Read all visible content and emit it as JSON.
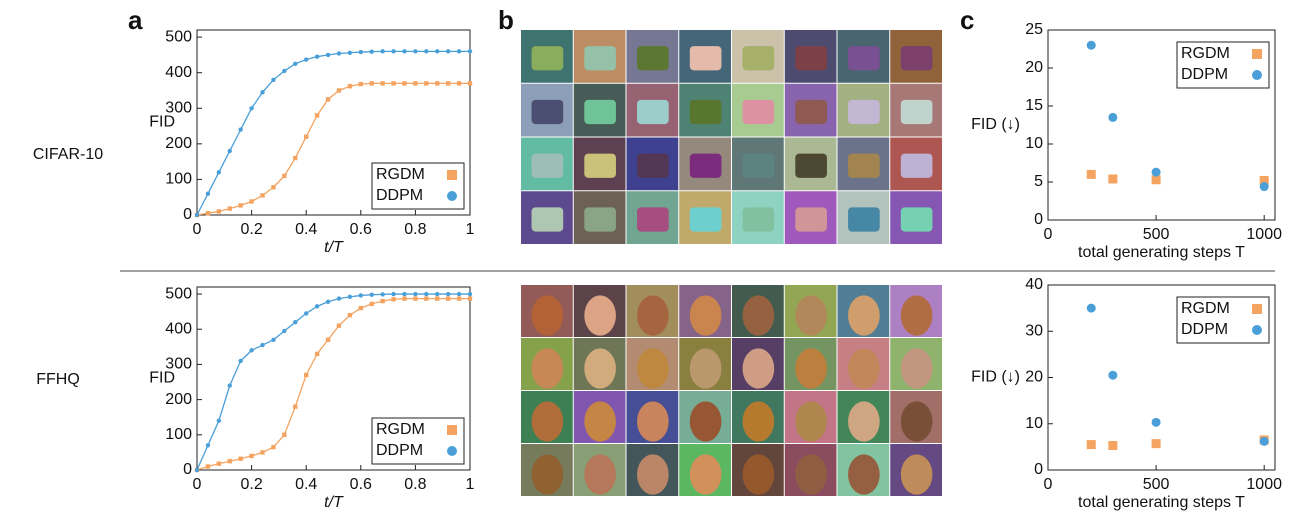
{
  "panels": [
    "a",
    "b",
    "c"
  ],
  "rows": [
    "CIFAR-10",
    "FFHQ"
  ],
  "chart_data": [
    {
      "type": "line",
      "xlabel": "t/T",
      "ylabel": "FID",
      "x": [
        0,
        0.04,
        0.08,
        0.12,
        0.16,
        0.2,
        0.24,
        0.28,
        0.32,
        0.36,
        0.4,
        0.44,
        0.48,
        0.52,
        0.56,
        0.6,
        0.64,
        0.68,
        0.72,
        0.76,
        0.8,
        0.84,
        0.88,
        0.92,
        0.96,
        1
      ],
      "xlim": [
        0,
        1
      ],
      "xticks": [
        0,
        0.2,
        0.4,
        0.6,
        0.8,
        1
      ],
      "ylim": [
        0,
        520
      ],
      "yticks": [
        0,
        100,
        200,
        300,
        400,
        500
      ],
      "legend": "lower right",
      "series": [
        {
          "name": "RGDM",
          "color": "#f4a460",
          "marker": "square",
          "values": [
            0,
            5,
            10,
            18,
            27,
            38,
            55,
            78,
            110,
            160,
            220,
            280,
            325,
            350,
            362,
            368,
            370,
            370,
            370,
            370,
            370,
            370,
            370,
            370,
            370,
            370
          ]
        },
        {
          "name": "DDPM",
          "color": "#4a9fd8",
          "marker": "circle",
          "values": [
            0,
            60,
            120,
            180,
            240,
            300,
            345,
            380,
            405,
            425,
            437,
            445,
            450,
            454,
            456,
            458,
            459,
            460,
            460,
            460,
            460,
            460,
            460,
            460,
            460,
            460
          ]
        }
      ]
    },
    {
      "type": "scatter",
      "xlabel": "total generating steps T",
      "ylabel": "FID (↓)",
      "x": [
        200,
        300,
        500,
        1000
      ],
      "xlim": [
        0,
        1050
      ],
      "xticks": [
        0,
        500,
        1000
      ],
      "ylim": [
        0,
        25
      ],
      "yticks": [
        0,
        5,
        10,
        15,
        20,
        25
      ],
      "legend": "upper right",
      "series": [
        {
          "name": "RGDM",
          "color": "#f4a460",
          "marker": "square",
          "values": [
            6,
            5.4,
            5.3,
            5.2
          ]
        },
        {
          "name": "DDPM",
          "color": "#4a9fd8",
          "marker": "circle",
          "values": [
            23,
            13.5,
            6.3,
            4.4
          ]
        }
      ]
    },
    {
      "type": "line",
      "xlabel": "t/T",
      "ylabel": "FID",
      "x": [
        0,
        0.04,
        0.08,
        0.12,
        0.16,
        0.2,
        0.24,
        0.28,
        0.32,
        0.36,
        0.4,
        0.44,
        0.48,
        0.52,
        0.56,
        0.6,
        0.64,
        0.68,
        0.72,
        0.76,
        0.8,
        0.84,
        0.88,
        0.92,
        0.96,
        1
      ],
      "xlim": [
        0,
        1
      ],
      "xticks": [
        0,
        0.2,
        0.4,
        0.6,
        0.8,
        1
      ],
      "ylim": [
        0,
        520
      ],
      "yticks": [
        0,
        100,
        200,
        300,
        400,
        500
      ],
      "legend": "lower right",
      "series": [
        {
          "name": "RGDM",
          "color": "#f4a460",
          "marker": "square",
          "values": [
            0,
            10,
            18,
            25,
            32,
            40,
            50,
            65,
            100,
            180,
            270,
            330,
            370,
            410,
            440,
            460,
            472,
            480,
            485,
            487,
            487,
            487,
            487,
            487,
            487,
            487
          ]
        },
        {
          "name": "DDPM",
          "color": "#4a9fd8",
          "marker": "circle",
          "values": [
            0,
            70,
            140,
            240,
            310,
            340,
            355,
            370,
            395,
            420,
            445,
            465,
            478,
            487,
            492,
            496,
            498,
            499,
            500,
            500,
            500,
            500,
            500,
            500,
            500,
            500
          ]
        }
      ]
    },
    {
      "type": "scatter",
      "xlabel": "total generating steps T",
      "ylabel": "FID (↓)",
      "x": [
        200,
        300,
        500,
        1000
      ],
      "xlim": [
        0,
        1050
      ],
      "xticks": [
        0,
        500,
        1000
      ],
      "ylim": [
        0,
        40
      ],
      "yticks": [
        0,
        10,
        20,
        30,
        40
      ],
      "legend": "upper right",
      "series": [
        {
          "name": "RGDM",
          "color": "#f4a460",
          "marker": "square",
          "values": [
            5.5,
            5.3,
            5.7,
            6.5
          ]
        },
        {
          "name": "DDPM",
          "color": "#4a9fd8",
          "marker": "circle",
          "values": [
            35,
            20.5,
            10.3,
            6.2
          ]
        }
      ]
    }
  ]
}
